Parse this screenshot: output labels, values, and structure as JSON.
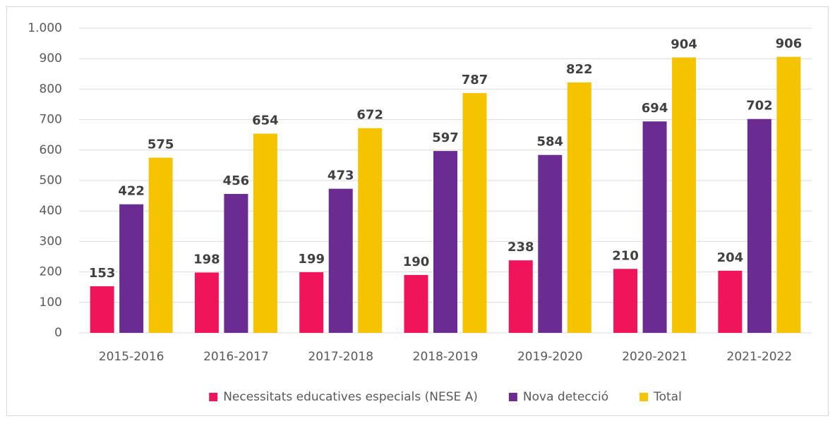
{
  "chart_data": {
    "type": "bar",
    "categories": [
      "2015-2016",
      "2016-2017",
      "2017-2018",
      "2018-2019",
      "2019-2020",
      "2020-2021",
      "2021-2022"
    ],
    "series": [
      {
        "name": "Necessitats educatives especials (NESE A)",
        "color": "#f0145a",
        "values": [
          153,
          198,
          199,
          190,
          238,
          210,
          204
        ]
      },
      {
        "name": "Nova detecció",
        "color": "#6a2c91",
        "values": [
          422,
          456,
          473,
          597,
          584,
          694,
          702
        ]
      },
      {
        "name": "Total",
        "color": "#f5c400",
        "values": [
          575,
          654,
          672,
          787,
          822,
          904,
          906
        ]
      }
    ],
    "ylim": [
      0,
      1000
    ],
    "yticks": [
      0,
      100,
      200,
      300,
      400,
      500,
      600,
      700,
      800,
      900,
      {
        "value": 1000,
        "label": "1.000"
      }
    ],
    "grid": true,
    "legend": "bottom"
  }
}
